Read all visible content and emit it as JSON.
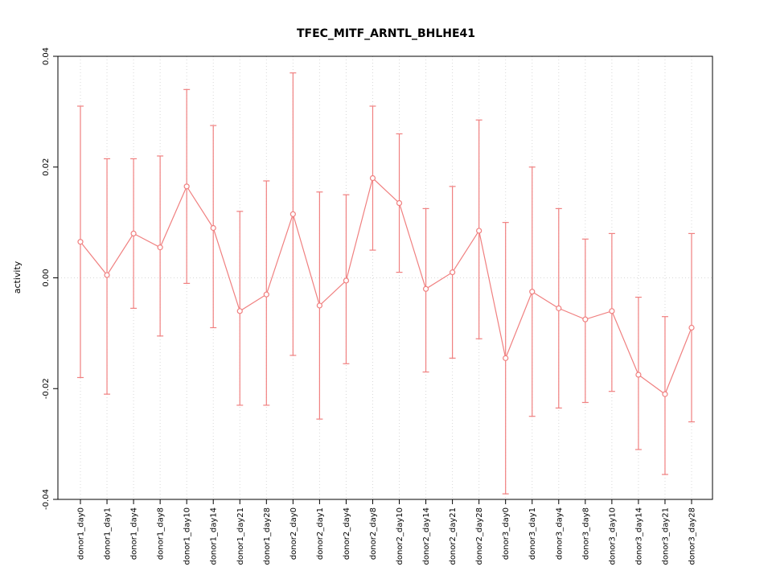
{
  "title": "TFEC_MITF_ARNTL_BHLHE41",
  "chart_data": {
    "type": "line",
    "title": "TFEC_MITF_ARNTL_BHLHE41",
    "xlabel": "",
    "ylabel": "activity",
    "ylim": [
      -0.04,
      0.04
    ],
    "yticks": [
      -0.04,
      -0.02,
      0.0,
      0.02,
      0.04
    ],
    "grid": "dotted vertical line per category and dotted horizontal line at y=0",
    "legend": "none",
    "point_color": "#f08080",
    "point_style": "open-circle with error bars and connecting line",
    "categories": [
      "donor1_day0",
      "donor1_day1",
      "donor1_day4",
      "donor1_day8",
      "donor1_day10",
      "donor1_day14",
      "donor1_day21",
      "donor1_day28",
      "donor2_day0",
      "donor2_day1",
      "donor2_day4",
      "donor2_day8",
      "donor2_day10",
      "donor2_day14",
      "donor2_day21",
      "donor2_day28",
      "donor3_day0",
      "donor3_day1",
      "donor3_day4",
      "donor3_day8",
      "donor3_day10",
      "donor3_day14",
      "donor3_day21",
      "donor3_day28"
    ],
    "series": [
      {
        "name": "activity",
        "values": [
          0.0065,
          0.0005,
          0.008,
          0.0055,
          0.0165,
          0.009,
          -0.006,
          -0.003,
          0.0115,
          -0.005,
          -0.0005,
          0.018,
          0.0135,
          -0.002,
          0.001,
          0.0085,
          -0.0145,
          -0.0025,
          -0.0055,
          -0.0075,
          -0.006,
          -0.0175,
          -0.021,
          -0.009
        ],
        "upper": [
          0.031,
          0.0215,
          0.0215,
          0.022,
          0.034,
          0.0275,
          0.012,
          0.0175,
          0.037,
          0.0155,
          0.015,
          0.031,
          0.026,
          0.0125,
          0.0165,
          0.0285,
          0.01,
          0.02,
          0.0125,
          0.007,
          0.008,
          -0.0035,
          -0.007,
          0.008
        ],
        "lower": [
          -0.018,
          -0.021,
          -0.0055,
          -0.0105,
          -0.001,
          -0.009,
          -0.023,
          -0.023,
          -0.014,
          -0.0255,
          -0.0155,
          0.005,
          0.001,
          -0.017,
          -0.0145,
          -0.011,
          -0.039,
          -0.025,
          -0.0235,
          -0.0225,
          -0.0205,
          -0.031,
          -0.0355,
          -0.026
        ]
      }
    ]
  }
}
